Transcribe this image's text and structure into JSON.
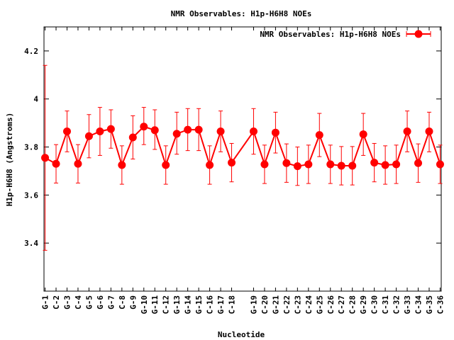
{
  "chart_data": {
    "type": "line",
    "title": "NMR Observables: H1p-H6H8 NOEs",
    "xlabel": "Nucleotide",
    "ylabel": "H1p-H6H8 (Angstroms)",
    "ylim": [
      3.2,
      4.3
    ],
    "yticks": [
      "3.4",
      "3.6",
      "3.8",
      "4",
      "4.2"
    ],
    "ytick_values": [
      3.4,
      3.6,
      3.8,
      4.0,
      4.2
    ],
    "legend_position": "top-right",
    "grid": false,
    "series": [
      {
        "name": "NMR Observables: H1p-H6H8 NOEs",
        "color": "#ff0000",
        "points": [
          {
            "label": "G-1",
            "x": 1,
            "y": 3.755,
            "err_low": 3.37,
            "err_high": 4.14
          },
          {
            "label": "C-2",
            "x": 2,
            "y": 3.73,
            "err_low": 3.65,
            "err_high": 3.81
          },
          {
            "label": "G-3",
            "x": 3,
            "y": 3.865,
            "err_low": 3.78,
            "err_high": 3.95
          },
          {
            "label": "C-4",
            "x": 4,
            "y": 3.73,
            "err_low": 3.65,
            "err_high": 3.81
          },
          {
            "label": "G-5",
            "x": 5,
            "y": 3.845,
            "err_low": 3.755,
            "err_high": 3.935
          },
          {
            "label": "G-6",
            "x": 6,
            "y": 3.865,
            "err_low": 3.765,
            "err_high": 3.965
          },
          {
            "label": "G-7",
            "x": 7,
            "y": 3.875,
            "err_low": 3.795,
            "err_high": 3.955
          },
          {
            "label": "C-8",
            "x": 8,
            "y": 3.725,
            "err_low": 3.645,
            "err_high": 3.805
          },
          {
            "label": "G-9",
            "x": 9,
            "y": 3.84,
            "err_low": 3.75,
            "err_high": 3.93
          },
          {
            "label": "G-10",
            "x": 10,
            "y": 3.885,
            "err_low": 3.81,
            "err_high": 3.965
          },
          {
            "label": "G-11",
            "x": 11,
            "y": 3.87,
            "err_low": 3.79,
            "err_high": 3.955
          },
          {
            "label": "C-12",
            "x": 12,
            "y": 3.725,
            "err_low": 3.645,
            "err_high": 3.805
          },
          {
            "label": "G-13",
            "x": 13,
            "y": 3.855,
            "err_low": 3.77,
            "err_high": 3.945
          },
          {
            "label": "G-14",
            "x": 14,
            "y": 3.872,
            "err_low": 3.785,
            "err_high": 3.96
          },
          {
            "label": "G-15",
            "x": 15,
            "y": 3.872,
            "err_low": 3.785,
            "err_high": 3.96
          },
          {
            "label": "C-16",
            "x": 16,
            "y": 3.725,
            "err_low": 3.645,
            "err_high": 3.805
          },
          {
            "label": "G-17",
            "x": 17,
            "y": 3.865,
            "err_low": 3.78,
            "err_high": 3.95
          },
          {
            "label": "C-18",
            "x": 18,
            "y": 3.735,
            "err_low": 3.655,
            "err_high": 3.815
          },
          {
            "label": "G-19",
            "x": 20,
            "y": 3.865,
            "err_low": 3.77,
            "err_high": 3.96
          },
          {
            "label": "C-20",
            "x": 21,
            "y": 3.728,
            "err_low": 3.648,
            "err_high": 3.808
          },
          {
            "label": "G-21",
            "x": 22,
            "y": 3.86,
            "err_low": 3.775,
            "err_high": 3.945
          },
          {
            "label": "C-22",
            "x": 23,
            "y": 3.733,
            "err_low": 3.653,
            "err_high": 3.813
          },
          {
            "label": "C-23",
            "x": 24,
            "y": 3.72,
            "err_low": 3.64,
            "err_high": 3.8
          },
          {
            "label": "C-24",
            "x": 25,
            "y": 3.728,
            "err_low": 3.648,
            "err_high": 3.808
          },
          {
            "label": "G-25",
            "x": 26,
            "y": 3.85,
            "err_low": 3.76,
            "err_high": 3.94
          },
          {
            "label": "C-26",
            "x": 27,
            "y": 3.728,
            "err_low": 3.648,
            "err_high": 3.808
          },
          {
            "label": "C-27",
            "x": 28,
            "y": 3.722,
            "err_low": 3.642,
            "err_high": 3.802
          },
          {
            "label": "C-28",
            "x": 29,
            "y": 3.722,
            "err_low": 3.642,
            "err_high": 3.802
          },
          {
            "label": "G-29",
            "x": 30,
            "y": 3.853,
            "err_low": 3.765,
            "err_high": 3.94
          },
          {
            "label": "C-30",
            "x": 31,
            "y": 3.735,
            "err_low": 3.655,
            "err_high": 3.815
          },
          {
            "label": "C-31",
            "x": 32,
            "y": 3.725,
            "err_low": 3.645,
            "err_high": 3.805
          },
          {
            "label": "C-32",
            "x": 33,
            "y": 3.728,
            "err_low": 3.648,
            "err_high": 3.808
          },
          {
            "label": "G-33",
            "x": 34,
            "y": 3.865,
            "err_low": 3.78,
            "err_high": 3.95
          },
          {
            "label": "C-34",
            "x": 35,
            "y": 3.733,
            "err_low": 3.653,
            "err_high": 3.813
          },
          {
            "label": "G-35",
            "x": 36,
            "y": 3.865,
            "err_low": 3.78,
            "err_high": 3.945
          },
          {
            "label": "C-36",
            "x": 37,
            "y": 3.728,
            "err_low": 3.648,
            "err_high": 3.808
          }
        ]
      }
    ],
    "xlim": [
      0.9,
      37.1
    ]
  }
}
